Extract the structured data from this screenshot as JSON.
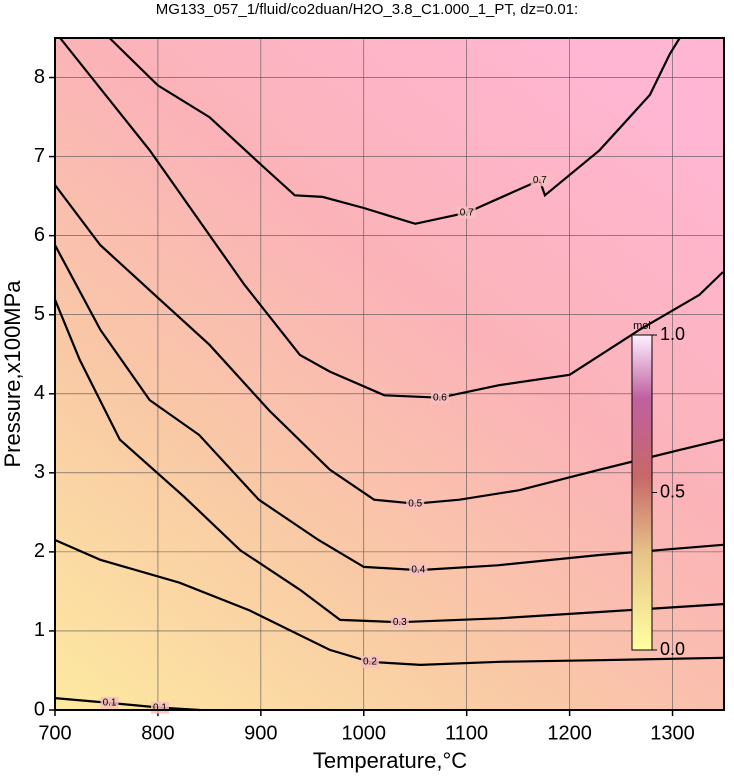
{
  "chart_data": {
    "type": "contour",
    "title": "MG133_057_1/fluid/co2duan/H2O_3.8_C1.000_1_PT, dz=0.01:",
    "x_label": "Temperature,°C",
    "y_label": "Pressure,x100MPa",
    "xlim": [
      700,
      1350
    ],
    "xticks": [
      700,
      800,
      900,
      1000,
      1100,
      1200,
      1300
    ],
    "ylim": [
      0,
      8.5
    ],
    "yticks": [
      0,
      1,
      2,
      3,
      4,
      5,
      6,
      7,
      8
    ],
    "grid": true,
    "series": [
      {
        "name": 0.7,
        "color": "#000000",
        "x": [
          753,
          800,
          850,
          900,
          933,
          960,
          1000,
          1050,
          1100,
          1150,
          1171,
          1176,
          1229,
          1278,
          1297,
          1307
        ],
        "values": [
          8.5,
          7.9,
          7.5,
          6.9,
          6.51,
          6.49,
          6.35,
          6.15,
          6.29,
          6.58,
          6.7,
          6.51,
          7.08,
          7.78,
          8.29,
          8.5
        ]
      },
      {
        "name": 0.6,
        "color": "#000000",
        "x": [
          705,
          792,
          884,
          938,
          967,
          1020,
          1074,
          1132,
          1200,
          1268,
          1326,
          1349
        ],
        "values": [
          8.5,
          7.08,
          5.38,
          4.49,
          4.28,
          3.98,
          3.95,
          4.11,
          4.24,
          4.81,
          5.25,
          5.54
        ]
      },
      {
        "name": 0.5,
        "color": "#000000",
        "x": [
          700,
          744,
          802,
          850,
          908,
          967,
          1010,
          1050,
          1093,
          1151,
          1229,
          1307,
          1349
        ],
        "values": [
          6.64,
          5.88,
          5.19,
          4.62,
          3.79,
          3.04,
          2.66,
          2.61,
          2.66,
          2.78,
          3.04,
          3.29,
          3.42
        ]
      },
      {
        "name": 0.4,
        "color": "#000000",
        "x": [
          700,
          744,
          792,
          840,
          898,
          956,
          1000,
          1053,
          1130,
          1229,
          1349
        ],
        "values": [
          5.88,
          4.81,
          3.92,
          3.48,
          2.66,
          2.15,
          1.81,
          1.77,
          1.83,
          1.96,
          2.09
        ]
      },
      {
        "name": 0.3,
        "color": "#000000",
        "x": [
          700,
          724,
          763,
          826,
          880,
          938,
          977,
          1035,
          1132,
          1229,
          1349
        ],
        "values": [
          5.19,
          4.43,
          3.42,
          2.69,
          2.02,
          1.52,
          1.14,
          1.11,
          1.16,
          1.24,
          1.34
        ]
      },
      {
        "name": 0.2,
        "color": "#000000",
        "x": [
          700,
          744,
          821,
          889,
          967,
          1006,
          1055,
          1132,
          1229,
          1349
        ],
        "values": [
          2.15,
          1.9,
          1.61,
          1.26,
          0.76,
          0.61,
          0.57,
          0.61,
          0.63,
          0.66
        ]
      },
      {
        "name": 0.1,
        "color": "#000000",
        "x": [
          700,
          753,
          802,
          841
        ],
        "values": [
          0.15,
          0.09,
          0.03,
          0
        ]
      }
    ],
    "colorbar": {
      "label": "mol",
      "lim": [
        0,
        1
      ],
      "ticks": [
        {
          "value": 0,
          "label": "0.0"
        },
        {
          "value": 0.5,
          "label": "0.5"
        },
        {
          "value": 1,
          "label": "1.0"
        }
      ]
    }
  }
}
